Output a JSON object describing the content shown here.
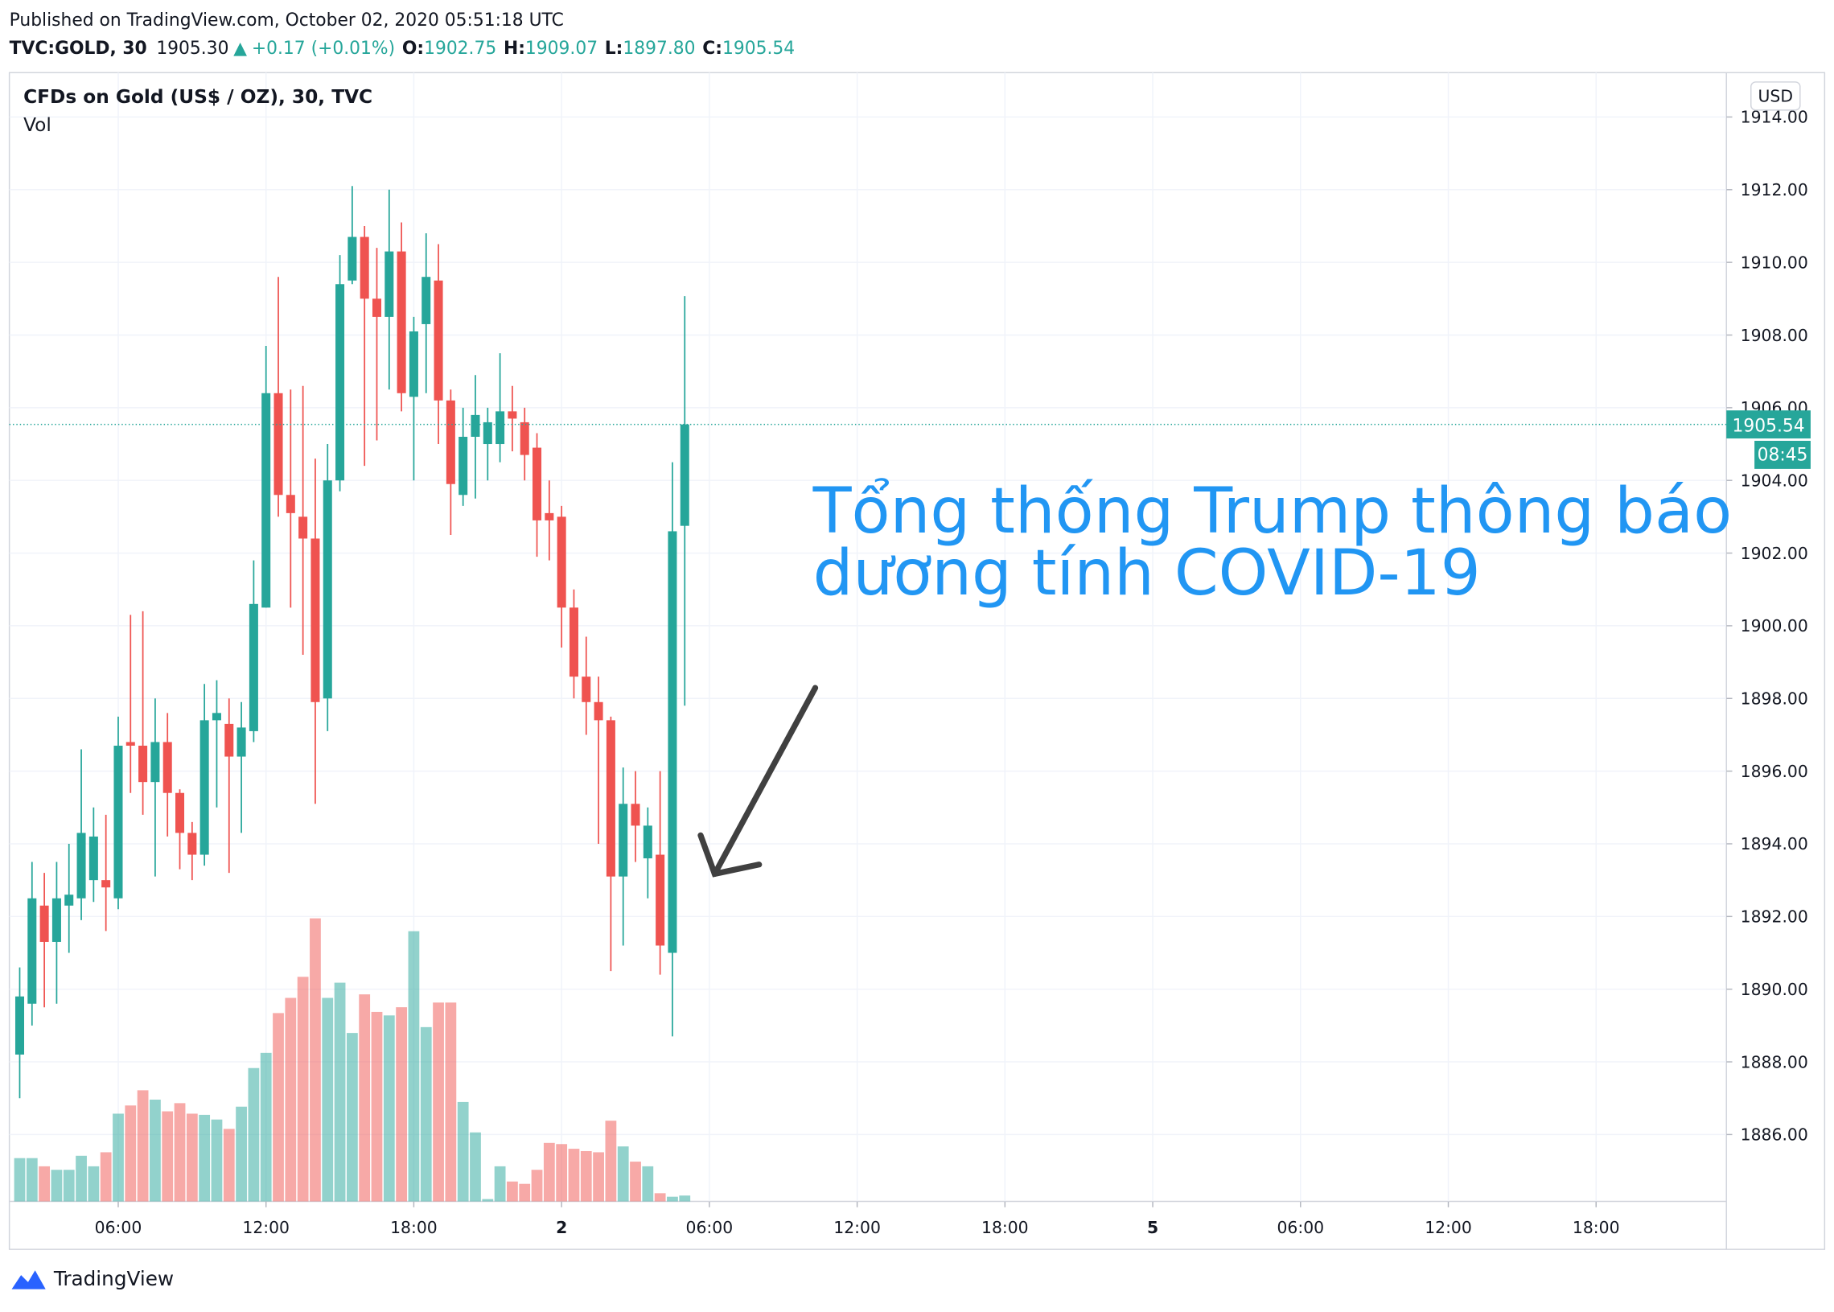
{
  "header": {
    "published": "Published on TradingView.com, October 02, 2020 05:51:18 UTC",
    "symbol": "TVC:GOLD, 30",
    "last": "1905.30",
    "arrow": "▲",
    "change": "+0.17 (+0.01%)",
    "o_label": "O:",
    "o": "1902.75",
    "h_label": "H:",
    "h": "1909.07",
    "l_label": "L:",
    "l": "1897.80",
    "c_label": "C:",
    "c": "1905.54"
  },
  "footer": {
    "logo": "TradingView"
  },
  "chart_data": {
    "type": "candlestick",
    "title": "CFDs on Gold (US$ / OZ), 30, TVC",
    "volume_label": "Vol",
    "currency": "USD",
    "countdown": "08:45",
    "annotation": [
      "Tổng thống Trump thông báo",
      "dương tính COVID-19"
    ],
    "up_color": "#26a69a",
    "down_color": "#ef5350",
    "grid": true,
    "last_price_line": true,
    "x": [
      2,
      2.5,
      3,
      3.5,
      4,
      4.5,
      5,
      5.5,
      6,
      6.5,
      7,
      7.5,
      8,
      8.5,
      9,
      9.5,
      10,
      10.5,
      11,
      11.5,
      12,
      12.5,
      13,
      13.5,
      14,
      14.5,
      15,
      15.5,
      16,
      16.5,
      17,
      17.5,
      18,
      18.5,
      19,
      19.5,
      20,
      20.5,
      21,
      21.5,
      22,
      22.5,
      23,
      23.5,
      24,
      24.5,
      25,
      25.5,
      26,
      26.5,
      27,
      27.5,
      28,
      28.5,
      29
    ],
    "open": [
      1888.2,
      1889.6,
      1892.3,
      1891.3,
      1892.3,
      1892.5,
      1893.0,
      1893.0,
      1892.5,
      1896.8,
      1896.7,
      1895.7,
      1896.8,
      1895.4,
      1894.3,
      1893.7,
      1897.4,
      1897.3,
      1896.4,
      1897.1,
      1900.5,
      1906.4,
      1903.6,
      1903.0,
      1902.4,
      1898.0,
      1904.0,
      1909.5,
      1910.7,
      1909.0,
      1908.5,
      1910.3,
      1906.3,
      1908.3,
      1909.5,
      1906.2,
      1903.6,
      1905.2,
      1905.0,
      1905.0,
      1905.9,
      1905.6,
      1904.9,
      1903.1,
      1903.0,
      1900.5,
      1898.6,
      1897.9,
      1897.4,
      1893.1,
      1895.1,
      1893.6,
      1893.7,
      1891.0,
      1902.75
    ],
    "high": [
      1890.6,
      1893.5,
      1893.2,
      1893.5,
      1894.0,
      1896.6,
      1895.0,
      1894.8,
      1897.5,
      1900.3,
      1900.4,
      1898.0,
      1897.6,
      1895.5,
      1894.6,
      1898.4,
      1898.5,
      1898.0,
      1897.9,
      1901.8,
      1907.7,
      1909.6,
      1906.5,
      1906.6,
      1904.6,
      1905.0,
      1910.2,
      1912.1,
      1911.0,
      1910.4,
      1912.0,
      1911.1,
      1908.5,
      1910.8,
      1910.5,
      1906.5,
      1906.0,
      1906.9,
      1906.0,
      1907.5,
      1906.6,
      1906.0,
      1905.3,
      1904.0,
      1903.3,
      1901.0,
      1899.7,
      1898.6,
      1897.5,
      1896.1,
      1896.0,
      1895.0,
      1896.0,
      1904.5,
      1909.07
    ],
    "low": [
      1887.0,
      1889.0,
      1889.5,
      1889.6,
      1891.0,
      1891.9,
      1892.4,
      1891.6,
      1892.2,
      1895.4,
      1894.8,
      1893.1,
      1894.2,
      1893.3,
      1893.0,
      1893.4,
      1895.0,
      1893.2,
      1894.3,
      1896.8,
      1900.5,
      1903.0,
      1900.5,
      1899.2,
      1895.1,
      1897.1,
      1903.7,
      1909.4,
      1904.4,
      1905.1,
      1906.5,
      1905.9,
      1904.0,
      1906.4,
      1905.0,
      1902.5,
      1903.3,
      1903.5,
      1904.0,
      1904.5,
      1904.8,
      1904.0,
      1901.9,
      1901.8,
      1899.4,
      1898.0,
      1897.0,
      1894.0,
      1890.5,
      1891.2,
      1893.5,
      1892.5,
      1890.4,
      1888.7,
      1897.8
    ],
    "close": [
      1889.8,
      1892.5,
      1891.3,
      1892.5,
      1892.6,
      1894.3,
      1894.2,
      1892.8,
      1896.7,
      1896.7,
      1895.7,
      1896.8,
      1895.4,
      1894.3,
      1893.7,
      1897.4,
      1897.6,
      1896.4,
      1897.2,
      1900.6,
      1906.4,
      1903.6,
      1903.1,
      1902.4,
      1897.9,
      1904.0,
      1909.4,
      1910.7,
      1909.0,
      1908.5,
      1910.3,
      1906.4,
      1908.1,
      1909.6,
      1906.2,
      1903.9,
      1905.2,
      1905.8,
      1905.6,
      1905.9,
      1905.7,
      1904.7,
      1902.9,
      1902.9,
      1900.5,
      1898.6,
      1897.9,
      1897.4,
      1893.1,
      1895.1,
      1894.5,
      1894.5,
      1891.2,
      1902.6,
      1905.54
    ],
    "volume": [
      37,
      37,
      30,
      27,
      27,
      39,
      30,
      42,
      75,
      82,
      95,
      87,
      77,
      84,
      75,
      74,
      70,
      62,
      81,
      114,
      127,
      161,
      174,
      192,
      242,
      174,
      187,
      144,
      177,
      162,
      159,
      166,
      231,
      149,
      170,
      170,
      85,
      59,
      2,
      30,
      17,
      15,
      27,
      50,
      49,
      45,
      43,
      42,
      69,
      47,
      34,
      30,
      7,
      4,
      5
    ],
    "xlim": [
      1.58,
      71.29
    ],
    "xticks": [
      {
        "value": 6,
        "label": "06:00"
      },
      {
        "value": 12,
        "label": "12:00"
      },
      {
        "value": 18,
        "label": "18:00"
      },
      {
        "value": 24,
        "label": "2"
      },
      {
        "value": 30,
        "label": "06:00"
      },
      {
        "value": 36,
        "label": "12:00"
      },
      {
        "value": 42,
        "label": "18:00"
      },
      {
        "value": 48,
        "label": "5"
      },
      {
        "value": 54,
        "label": "06:00"
      },
      {
        "value": 60,
        "label": "12:00"
      },
      {
        "value": 66,
        "label": "18:00"
      }
    ],
    "ylim": [
      1884.16,
      1915.22
    ],
    "yticks": [
      {
        "value": 1886,
        "label": "1886.00"
      },
      {
        "value": 1888,
        "label": "1888.00"
      },
      {
        "value": 1890,
        "label": "1890.00"
      },
      {
        "value": 1892,
        "label": "1892.00"
      },
      {
        "value": 1894,
        "label": "1894.00"
      },
      {
        "value": 1896,
        "label": "1896.00"
      },
      {
        "value": 1898,
        "label": "1898.00"
      },
      {
        "value": 1900,
        "label": "1900.00"
      },
      {
        "value": 1902,
        "label": "1902.00"
      },
      {
        "value": 1904,
        "label": "1904.00"
      },
      {
        "value": 1906,
        "label": "1906.00"
      },
      {
        "value": 1908,
        "label": "1908.00"
      },
      {
        "value": 1910,
        "label": "1910.00"
      },
      {
        "value": 1912,
        "label": "1912.00"
      },
      {
        "value": 1914,
        "label": "1914.00"
      }
    ]
  }
}
